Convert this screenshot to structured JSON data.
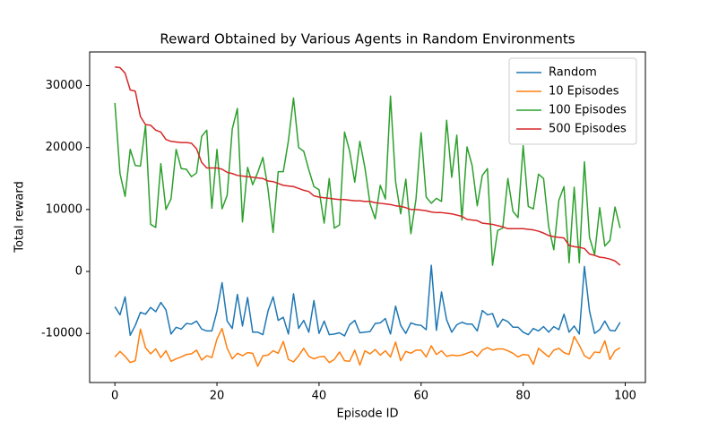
{
  "chart_data": {
    "type": "line",
    "title": "Reward Obtained by Various Agents in Random Environments",
    "xlabel": "Episode ID",
    "ylabel": "Total reward",
    "x": [
      0,
      1,
      2,
      3,
      4,
      5,
      6,
      7,
      8,
      9,
      10,
      11,
      12,
      13,
      14,
      15,
      16,
      17,
      18,
      19,
      20,
      21,
      22,
      23,
      24,
      25,
      26,
      27,
      28,
      29,
      30,
      31,
      32,
      33,
      34,
      35,
      36,
      37,
      38,
      39,
      40,
      41,
      42,
      43,
      44,
      45,
      46,
      47,
      48,
      49,
      50,
      51,
      52,
      53,
      54,
      55,
      56,
      57,
      58,
      59,
      60,
      61,
      62,
      63,
      64,
      65,
      66,
      67,
      68,
      69,
      70,
      71,
      72,
      73,
      74,
      75,
      76,
      77,
      78,
      79,
      80,
      81,
      82,
      83,
      84,
      85,
      86,
      87,
      88,
      89,
      90,
      91,
      92,
      93,
      94,
      95,
      96,
      97,
      98,
      99
    ],
    "series": [
      {
        "name": "Random",
        "color": "#1f77b4",
        "values": [
          -5700,
          -7000,
          -4100,
          -10300,
          -8700,
          -6600,
          -6900,
          -5800,
          -6500,
          -5000,
          -6200,
          -10100,
          -9000,
          -9300,
          -8400,
          -8500,
          -8000,
          -9300,
          -9600,
          -9600,
          -6400,
          -1800,
          -8000,
          -9200,
          -3700,
          -8800,
          -4200,
          -9800,
          -9800,
          -10200,
          -6400,
          -4100,
          -7900,
          -7400,
          -10100,
          -3600,
          -9200,
          -7900,
          -9800,
          -4700,
          -10000,
          -8000,
          -10200,
          -10100,
          -9900,
          -10400,
          -8600,
          -7900,
          -9900,
          -9800,
          -9700,
          -8400,
          -8300,
          -7600,
          -10100,
          -5600,
          -8700,
          -10000,
          -8300,
          -8600,
          -8700,
          -9400,
          1000,
          -9500,
          -3300,
          -7800,
          -9800,
          -8600,
          -8200,
          -8500,
          -8500,
          -9600,
          -6300,
          -7000,
          -6800,
          -9000,
          -7700,
          -8100,
          -9000,
          -9000,
          -9800,
          -10200,
          -9200,
          -9600,
          -8900,
          -9800,
          -8900,
          -9400,
          -6900,
          -9800,
          -8800,
          -10100,
          800,
          -6400,
          -10000,
          -9400,
          -8000,
          -9500,
          -9600,
          -8200
        ]
      },
      {
        "name": "10 Episodes",
        "color": "#ff7f0e",
        "values": [
          -13800,
          -12900,
          -13700,
          -14700,
          -14400,
          -9300,
          -12300,
          -13300,
          -12500,
          -13900,
          -12800,
          -14500,
          -14100,
          -13800,
          -13400,
          -13300,
          -12700,
          -14300,
          -13600,
          -13900,
          -10900,
          -9200,
          -12400,
          -14100,
          -13200,
          -13600,
          -13100,
          -13200,
          -15300,
          -13600,
          -13500,
          -12800,
          -13200,
          -11300,
          -14200,
          -14600,
          -13600,
          -12400,
          -13700,
          -14100,
          -13800,
          -13700,
          -14700,
          -14200,
          -13000,
          -14400,
          -14500,
          -12700,
          -15100,
          -12800,
          -13300,
          -12600,
          -13500,
          -12800,
          -13800,
          -11400,
          -14400,
          -12900,
          -13200,
          -12700,
          -12700,
          -13800,
          -12000,
          -13400,
          -12800,
          -13700,
          -13500,
          -13600,
          -13500,
          -13200,
          -12900,
          -13700,
          -12700,
          -12300,
          -12700,
          -12500,
          -12500,
          -12800,
          -13200,
          -13800,
          -13400,
          -13500,
          -15000,
          -12400,
          -13100,
          -13800,
          -12700,
          -12400,
          -13100,
          -13400,
          -10500,
          -11900,
          -13600,
          -14100,
          -13000,
          -13100,
          -11200,
          -14200,
          -12800,
          -12300
        ]
      },
      {
        "name": "100 Episodes",
        "color": "#2ca02c",
        "values": [
          27200,
          15800,
          12100,
          19700,
          17100,
          17000,
          23600,
          7600,
          7100,
          17400,
          10000,
          11700,
          19700,
          16600,
          16500,
          15300,
          15900,
          21800,
          22800,
          10200,
          19700,
          10100,
          12300,
          23000,
          26300,
          8000,
          16800,
          14000,
          16000,
          18400,
          13300,
          6300,
          16100,
          16100,
          21100,
          28000,
          20000,
          19400,
          16400,
          13700,
          13200,
          7800,
          15000,
          7000,
          7500,
          22500,
          19400,
          14400,
          21000,
          16700,
          10900,
          8500,
          13900,
          11700,
          28300,
          14500,
          9300,
          14900,
          6100,
          11700,
          22400,
          12000,
          11000,
          11800,
          11300,
          24400,
          15200,
          22000,
          8300,
          20100,
          17100,
          10600,
          15500,
          16600,
          1000,
          6600,
          7000,
          15000,
          9700,
          8700,
          20300,
          10500,
          10100,
          15700,
          15000,
          7200,
          3500,
          11500,
          13700,
          1400,
          13600,
          1400,
          17700,
          5500,
          2700,
          10300,
          4100,
          5000,
          10400,
          7000
        ]
      },
      {
        "name": "500 Episodes",
        "color": "#d62728",
        "values": [
          33000,
          32900,
          32000,
          29300,
          29100,
          25000,
          23700,
          23600,
          22800,
          22500,
          21300,
          21000,
          20900,
          20800,
          20800,
          20700,
          19800,
          17600,
          16700,
          16700,
          16700,
          16500,
          16000,
          15800,
          15500,
          15400,
          15300,
          15200,
          15100,
          15000,
          14600,
          14500,
          14200,
          13900,
          13800,
          13700,
          13400,
          13100,
          12900,
          12200,
          12000,
          11900,
          11800,
          11700,
          11600,
          11600,
          11500,
          11400,
          11400,
          11300,
          11300,
          11100,
          11000,
          10900,
          10800,
          10600,
          10500,
          10300,
          10000,
          10000,
          9900,
          9800,
          9600,
          9500,
          9500,
          9400,
          9300,
          9100,
          8900,
          8400,
          8300,
          8200,
          7800,
          7700,
          7600,
          7400,
          7200,
          6900,
          6900,
          6900,
          6900,
          6800,
          6700,
          6500,
          6200,
          5800,
          5600,
          5500,
          5400,
          4200,
          4000,
          3900,
          3700,
          2800,
          2600,
          2300,
          2200,
          2000,
          1700,
          1000
        ]
      }
    ],
    "xlim": [
      -4.95,
      103.95
    ],
    "xticks": [
      0,
      20,
      40,
      60,
      80,
      100
    ],
    "ylim": [
      -17925,
      35425
    ],
    "yticks": [
      -10000,
      0,
      10000,
      20000,
      30000
    ],
    "legend": "upper right",
    "grid": false
  }
}
